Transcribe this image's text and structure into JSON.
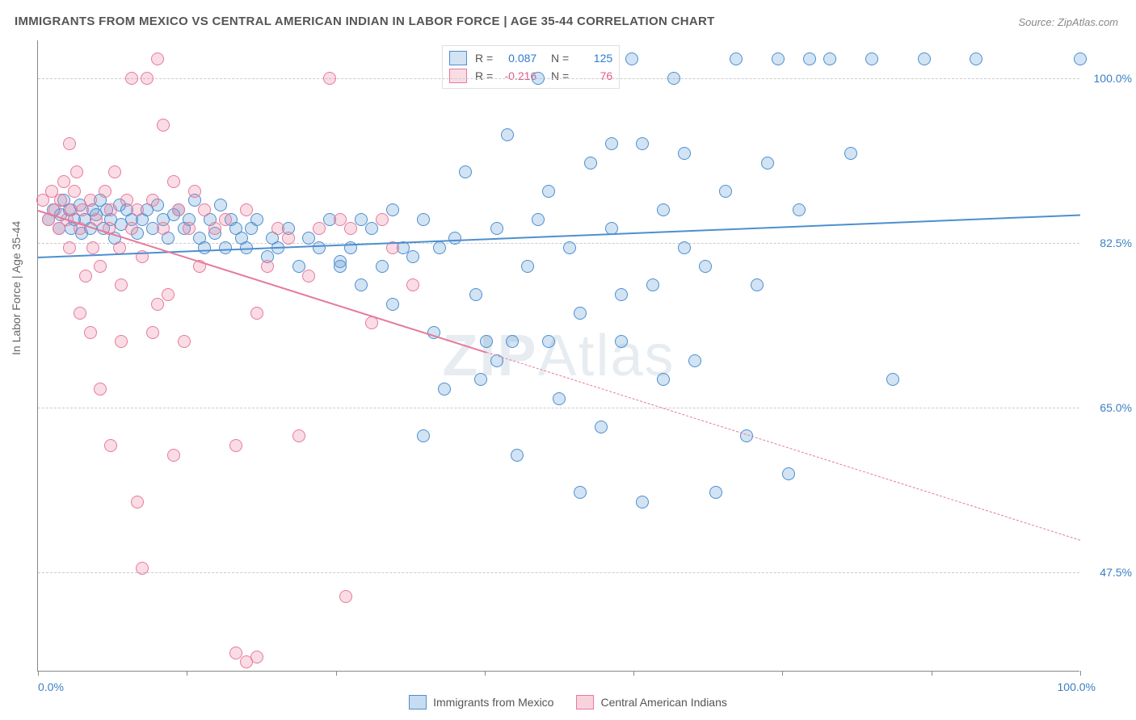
{
  "title": "IMMIGRANTS FROM MEXICO VS CENTRAL AMERICAN INDIAN IN LABOR FORCE | AGE 35-44 CORRELATION CHART",
  "source": "Source: ZipAtlas.com",
  "y_axis_label": "In Labor Force | Age 35-44",
  "watermark_a": "ZIP",
  "watermark_b": "Atlas",
  "chart": {
    "type": "scatter",
    "xlim": [
      0,
      100
    ],
    "ylim": [
      37,
      104
    ],
    "y_ticks": [
      47.5,
      65.0,
      82.5,
      100.0
    ],
    "y_tick_labels": [
      "47.5%",
      "65.0%",
      "82.5%",
      "100.0%"
    ],
    "x_ticks_minor": [
      0,
      14.3,
      28.6,
      42.9,
      57.1,
      71.4,
      85.7,
      100
    ],
    "x_tick_labels": {
      "left": "0.0%",
      "right": "100.0%"
    },
    "background_color": "#ffffff",
    "grid_color": "#cccccc",
    "marker_size": 16,
    "marker_stroke_width": 1.4,
    "series": [
      {
        "name": "Immigrants from Mexico",
        "color_fill": "rgba(93,155,212,0.28)",
        "color_stroke": "#4d8fcf",
        "stat_color": "#2e7ad1",
        "R": "0.087",
        "N": "125",
        "trend": {
          "x1": 0,
          "y1": 81.0,
          "x2": 100,
          "y2": 85.5,
          "solid_until_x": 100
        },
        "points": [
          [
            1,
            85
          ],
          [
            1.5,
            86
          ],
          [
            2,
            84
          ],
          [
            2.2,
            85.5
          ],
          [
            2.5,
            87
          ],
          [
            3,
            86
          ],
          [
            3.2,
            84
          ],
          [
            3.5,
            85
          ],
          [
            4,
            86.5
          ],
          [
            4.2,
            83.5
          ],
          [
            4.5,
            85
          ],
          [
            5,
            84
          ],
          [
            5.3,
            86
          ],
          [
            5.6,
            85.5
          ],
          [
            6,
            87
          ],
          [
            6.3,
            84
          ],
          [
            6.6,
            86
          ],
          [
            7,
            85
          ],
          [
            7.4,
            83
          ],
          [
            7.8,
            86.5
          ],
          [
            8,
            84.5
          ],
          [
            8.5,
            86
          ],
          [
            9,
            85
          ],
          [
            9.5,
            83.5
          ],
          [
            10,
            85
          ],
          [
            10.5,
            86
          ],
          [
            11,
            84
          ],
          [
            11.5,
            86.5
          ],
          [
            12,
            85
          ],
          [
            12.5,
            83
          ],
          [
            13,
            85.5
          ],
          [
            13.5,
            86
          ],
          [
            14,
            84
          ],
          [
            14.5,
            85
          ],
          [
            15,
            87
          ],
          [
            15.5,
            83
          ],
          [
            16,
            82
          ],
          [
            16.5,
            85
          ],
          [
            17,
            83.5
          ],
          [
            17.5,
            86.5
          ],
          [
            18,
            82
          ],
          [
            18.5,
            85
          ],
          [
            19,
            84
          ],
          [
            19.5,
            83
          ],
          [
            20,
            82
          ],
          [
            20.5,
            84
          ],
          [
            21,
            85
          ],
          [
            22,
            81
          ],
          [
            22.5,
            83
          ],
          [
            23,
            82
          ],
          [
            24,
            84
          ],
          [
            25,
            80
          ],
          [
            26,
            83
          ],
          [
            27,
            82
          ],
          [
            28,
            85
          ],
          [
            29,
            80.5
          ],
          [
            30,
            82
          ],
          [
            31,
            78
          ],
          [
            32,
            84
          ],
          [
            33,
            80
          ],
          [
            34,
            76
          ],
          [
            35,
            82
          ],
          [
            36,
            81
          ],
          [
            37,
            85
          ],
          [
            38,
            73
          ],
          [
            38.5,
            82
          ],
          [
            39,
            67
          ],
          [
            40,
            83
          ],
          [
            41,
            90
          ],
          [
            42,
            77
          ],
          [
            42.5,
            68
          ],
          [
            43,
            72
          ],
          [
            44,
            84
          ],
          [
            45,
            94
          ],
          [
            45.5,
            72
          ],
          [
            46,
            60
          ],
          [
            47,
            80
          ],
          [
            48,
            100
          ],
          [
            49,
            88
          ],
          [
            50,
            66
          ],
          [
            51,
            82
          ],
          [
            52,
            75
          ],
          [
            53,
            91
          ],
          [
            54,
            63
          ],
          [
            55,
            84
          ],
          [
            56,
            72
          ],
          [
            57,
            102
          ],
          [
            58,
            93
          ],
          [
            59,
            78
          ],
          [
            60,
            86
          ],
          [
            61,
            100
          ],
          [
            62,
            92
          ],
          [
            63,
            70
          ],
          [
            64,
            80
          ],
          [
            65,
            56
          ],
          [
            66,
            88
          ],
          [
            67,
            102
          ],
          [
            68,
            62
          ],
          [
            69,
            78
          ],
          [
            70,
            91
          ],
          [
            71,
            102
          ],
          [
            72,
            58
          ],
          [
            73,
            86
          ],
          [
            74,
            102
          ],
          [
            76,
            102
          ],
          [
            78,
            92
          ],
          [
            80,
            102
          ],
          [
            82,
            68
          ],
          [
            85,
            102
          ],
          [
            90,
            102
          ],
          [
            52,
            56
          ],
          [
            58,
            55
          ],
          [
            49,
            72
          ],
          [
            44,
            70
          ],
          [
            37,
            62
          ],
          [
            60,
            68
          ],
          [
            55,
            93
          ],
          [
            48,
            85
          ],
          [
            56,
            77
          ],
          [
            62,
            82
          ],
          [
            34,
            86
          ],
          [
            31,
            85
          ],
          [
            29,
            80
          ],
          [
            100,
            102
          ]
        ]
      },
      {
        "name": "Central American Indians",
        "color_fill": "rgba(236,130,160,0.28)",
        "color_stroke": "#e67a9c",
        "stat_color": "#e25b87",
        "R": "-0.216",
        "N": "76",
        "trend": {
          "x1": 0,
          "y1": 86.0,
          "x2": 100,
          "y2": 51.0,
          "solid_until_x": 43
        },
        "points": [
          [
            0.5,
            87
          ],
          [
            1,
            85
          ],
          [
            1.3,
            88
          ],
          [
            1.6,
            86
          ],
          [
            2,
            84
          ],
          [
            2.2,
            87
          ],
          [
            2.5,
            89
          ],
          [
            2.8,
            85
          ],
          [
            3,
            82
          ],
          [
            3.2,
            86
          ],
          [
            3.5,
            88
          ],
          [
            3.7,
            90
          ],
          [
            4,
            84
          ],
          [
            4.3,
            86
          ],
          [
            4.6,
            79
          ],
          [
            5,
            87
          ],
          [
            5.3,
            82
          ],
          [
            5.6,
            85
          ],
          [
            6,
            80
          ],
          [
            6.4,
            88
          ],
          [
            6.8,
            84
          ],
          [
            7,
            86
          ],
          [
            7.4,
            90
          ],
          [
            7.8,
            82
          ],
          [
            8,
            78
          ],
          [
            8.5,
            87
          ],
          [
            9,
            84
          ],
          [
            9.5,
            86
          ],
          [
            10,
            81
          ],
          [
            10.5,
            100
          ],
          [
            11,
            87
          ],
          [
            11.5,
            102
          ],
          [
            12,
            84
          ],
          [
            12.5,
            77
          ],
          [
            13,
            89
          ],
          [
            13.5,
            86
          ],
          [
            14,
            72
          ],
          [
            14.5,
            84
          ],
          [
            15,
            88
          ],
          [
            15.5,
            80
          ],
          [
            16,
            86
          ],
          [
            4,
            75
          ],
          [
            5,
            73
          ],
          [
            8,
            72
          ],
          [
            3,
            93
          ],
          [
            6,
            67
          ],
          [
            9,
            100
          ],
          [
            12,
            95
          ],
          [
            11,
            73
          ],
          [
            7,
            61
          ],
          [
            9.5,
            55
          ],
          [
            10,
            48
          ],
          [
            11.5,
            76
          ],
          [
            13,
            60
          ],
          [
            17,
            84
          ],
          [
            18,
            85
          ],
          [
            19,
            61
          ],
          [
            20,
            86
          ],
          [
            21,
            75
          ],
          [
            22,
            80
          ],
          [
            23,
            84
          ],
          [
            24,
            83
          ],
          [
            25,
            62
          ],
          [
            26,
            79
          ],
          [
            27,
            84
          ],
          [
            28,
            100
          ],
          [
            29,
            85
          ],
          [
            29.5,
            45
          ],
          [
            30,
            84
          ],
          [
            32,
            74
          ],
          [
            33,
            85
          ],
          [
            34,
            82
          ],
          [
            36,
            78
          ],
          [
            19,
            39
          ],
          [
            20,
            38
          ],
          [
            21,
            38.5
          ]
        ]
      }
    ]
  },
  "bottom_legend": [
    {
      "label": "Immigrants from Mexico",
      "fill": "rgba(93,155,212,0.35)",
      "stroke": "#4d8fcf"
    },
    {
      "label": "Central American Indians",
      "fill": "rgba(236,130,160,0.35)",
      "stroke": "#e67a9c"
    }
  ]
}
